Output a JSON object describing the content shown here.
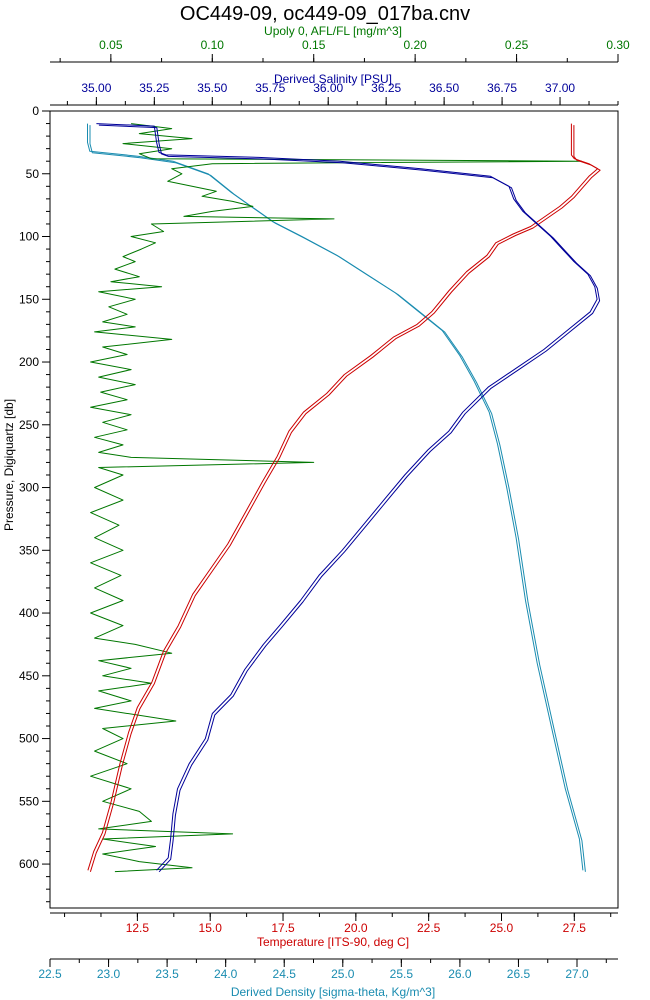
{
  "chart_data": {
    "type": "line",
    "title": "OC449-09, oc449-09_017ba.cnv",
    "axes": {
      "pressure": {
        "label": "Pressure, Digiquartz [db]",
        "range": [
          0,
          635
        ],
        "ticks": [
          "0",
          "50",
          "100",
          "150",
          "200",
          "250",
          "300",
          "350",
          "400",
          "450",
          "500",
          "550",
          "600"
        ],
        "color": "#000000"
      },
      "fluor": {
        "label": "Upoly 0, AFL/FL [mg/m^3]",
        "range": [
          0.02,
          0.3
        ],
        "ticks": [
          "0.05",
          "0.10",
          "0.15",
          "0.20",
          "0.25",
          "0.30"
        ],
        "color": "#007700"
      },
      "salinity": {
        "label": "Derived Salinity [PSU]",
        "range": [
          34.8,
          37.25
        ],
        "ticks": [
          "35.00",
          "35.25",
          "35.50",
          "35.75",
          "36.00",
          "36.25",
          "36.50",
          "36.75",
          "37.00"
        ],
        "color": "#000099"
      },
      "temperature": {
        "label": "Temperature [ITS-90, deg C]",
        "range": [
          9.5,
          29.0
        ],
        "ticks": [
          "12.5",
          "15.0",
          "17.5",
          "20.0",
          "22.5",
          "25.0",
          "27.5"
        ],
        "color": "#cc0000"
      },
      "density": {
        "label": "Derived Density [sigma-theta, Kg/m^3]",
        "range": [
          22.5,
          27.35
        ],
        "ticks": [
          "22.5",
          "23.0",
          "23.5",
          "24.0",
          "24.5",
          "25.0",
          "25.5",
          "26.0",
          "26.5",
          "27.0"
        ],
        "color": "#1a8cb0"
      }
    },
    "series": [
      {
        "key": "salinity",
        "color": "#000099",
        "points": [
          [
            35.0,
            10
          ],
          [
            35.25,
            12
          ],
          [
            35.26,
            25
          ],
          [
            35.27,
            33
          ],
          [
            35.3,
            35
          ],
          [
            35.7,
            37
          ],
          [
            36.05,
            40
          ],
          [
            36.4,
            46
          ],
          [
            36.7,
            52
          ],
          [
            36.78,
            60
          ],
          [
            36.8,
            70
          ],
          [
            36.84,
            80
          ],
          [
            36.9,
            90
          ],
          [
            36.96,
            100
          ],
          [
            37.01,
            110
          ],
          [
            37.06,
            120
          ],
          [
            37.12,
            130
          ],
          [
            37.15,
            140
          ],
          [
            37.16,
            150
          ],
          [
            37.13,
            160
          ],
          [
            37.03,
            175
          ],
          [
            36.93,
            190
          ],
          [
            36.81,
            205
          ],
          [
            36.69,
            220
          ],
          [
            36.58,
            240
          ],
          [
            36.52,
            255
          ],
          [
            36.43,
            270
          ],
          [
            36.33,
            290
          ],
          [
            36.24,
            310
          ],
          [
            36.15,
            330
          ],
          [
            36.06,
            350
          ],
          [
            35.96,
            370
          ],
          [
            35.88,
            390
          ],
          [
            35.79,
            410
          ],
          [
            35.72,
            425
          ],
          [
            35.64,
            445
          ],
          [
            35.58,
            465
          ],
          [
            35.5,
            480
          ],
          [
            35.47,
            500
          ],
          [
            35.4,
            520
          ],
          [
            35.35,
            540
          ],
          [
            35.33,
            560
          ],
          [
            35.32,
            580
          ],
          [
            35.31,
            595
          ],
          [
            35.26,
            605
          ]
        ]
      },
      {
        "key": "temperature",
        "color": "#cc0000",
        "points": [
          [
            27.4,
            10
          ],
          [
            27.4,
            20
          ],
          [
            27.4,
            35
          ],
          [
            27.5,
            38
          ],
          [
            28.0,
            42
          ],
          [
            28.3,
            46
          ],
          [
            28.0,
            52
          ],
          [
            27.7,
            60
          ],
          [
            27.4,
            68
          ],
          [
            27.0,
            76
          ],
          [
            26.5,
            84
          ],
          [
            26.0,
            92
          ],
          [
            25.4,
            98
          ],
          [
            24.8,
            105
          ],
          [
            24.5,
            115
          ],
          [
            23.8,
            128
          ],
          [
            23.2,
            143
          ],
          [
            22.6,
            160
          ],
          [
            22.1,
            170
          ],
          [
            21.3,
            180
          ],
          [
            20.5,
            195
          ],
          [
            19.6,
            210
          ],
          [
            19.0,
            225
          ],
          [
            18.2,
            240
          ],
          [
            17.7,
            255
          ],
          [
            17.3,
            275
          ],
          [
            16.8,
            295
          ],
          [
            16.2,
            320
          ],
          [
            15.6,
            345
          ],
          [
            15.0,
            365
          ],
          [
            14.4,
            385
          ],
          [
            13.9,
            410
          ],
          [
            13.4,
            430
          ],
          [
            13.0,
            455
          ],
          [
            12.5,
            475
          ],
          [
            12.2,
            495
          ],
          [
            11.9,
            520
          ],
          [
            11.6,
            550
          ],
          [
            11.3,
            575
          ],
          [
            11.0,
            590
          ],
          [
            10.8,
            605
          ]
        ]
      },
      {
        "key": "density",
        "color": "#1a8cb0",
        "points": [
          [
            22.82,
            10
          ],
          [
            22.82,
            25
          ],
          [
            22.84,
            32
          ],
          [
            23.25,
            36
          ],
          [
            23.55,
            40
          ],
          [
            23.85,
            50
          ],
          [
            24.05,
            65
          ],
          [
            24.2,
            75
          ],
          [
            24.4,
            88
          ],
          [
            24.65,
            100
          ],
          [
            24.95,
            115
          ],
          [
            25.2,
            130
          ],
          [
            25.45,
            145
          ],
          [
            25.65,
            160
          ],
          [
            25.85,
            175
          ],
          [
            26.0,
            195
          ],
          [
            26.12,
            215
          ],
          [
            26.25,
            240
          ],
          [
            26.32,
            265
          ],
          [
            26.4,
            300
          ],
          [
            26.48,
            340
          ],
          [
            26.56,
            390
          ],
          [
            26.66,
            440
          ],
          [
            26.78,
            490
          ],
          [
            26.9,
            540
          ],
          [
            27.02,
            580
          ],
          [
            27.05,
            605
          ]
        ]
      },
      {
        "key": "fluor",
        "color": "#007700",
        "points": [
          [
            0.06,
            10
          ],
          [
            0.08,
            14
          ],
          [
            0.064,
            18
          ],
          [
            0.09,
            22
          ],
          [
            0.056,
            26
          ],
          [
            0.08,
            30
          ],
          [
            0.064,
            34
          ],
          [
            0.07,
            38
          ],
          [
            0.282,
            40
          ],
          [
            0.1,
            42
          ],
          [
            0.08,
            46
          ],
          [
            0.085,
            50
          ],
          [
            0.078,
            56
          ],
          [
            0.09,
            60
          ],
          [
            0.102,
            64
          ],
          [
            0.095,
            68
          ],
          [
            0.11,
            72
          ],
          [
            0.12,
            76
          ],
          [
            0.1,
            80
          ],
          [
            0.086,
            84
          ],
          [
            0.16,
            86
          ],
          [
            0.07,
            90
          ],
          [
            0.076,
            96
          ],
          [
            0.06,
            100
          ],
          [
            0.072,
            105
          ],
          [
            0.065,
            110
          ],
          [
            0.056,
            116
          ],
          [
            0.062,
            120
          ],
          [
            0.052,
            126
          ],
          [
            0.064,
            132
          ],
          [
            0.05,
            136
          ],
          [
            0.075,
            140
          ],
          [
            0.044,
            144
          ],
          [
            0.062,
            150
          ],
          [
            0.049,
            156
          ],
          [
            0.058,
            162
          ],
          [
            0.046,
            168
          ],
          [
            0.062,
            172
          ],
          [
            0.042,
            176
          ],
          [
            0.08,
            182
          ],
          [
            0.046,
            188
          ],
          [
            0.058,
            194
          ],
          [
            0.04,
            200
          ],
          [
            0.06,
            206
          ],
          [
            0.044,
            212
          ],
          [
            0.062,
            218
          ],
          [
            0.045,
            224
          ],
          [
            0.058,
            230
          ],
          [
            0.04,
            236
          ],
          [
            0.06,
            242
          ],
          [
            0.046,
            248
          ],
          [
            0.058,
            254
          ],
          [
            0.042,
            260
          ],
          [
            0.056,
            266
          ],
          [
            0.044,
            272
          ],
          [
            0.06,
            276
          ],
          [
            0.15,
            280
          ],
          [
            0.044,
            284
          ],
          [
            0.056,
            290
          ],
          [
            0.042,
            300
          ],
          [
            0.056,
            310
          ],
          [
            0.04,
            320
          ],
          [
            0.054,
            330
          ],
          [
            0.042,
            340
          ],
          [
            0.056,
            350
          ],
          [
            0.04,
            360
          ],
          [
            0.055,
            370
          ],
          [
            0.042,
            380
          ],
          [
            0.056,
            390
          ],
          [
            0.04,
            400
          ],
          [
            0.056,
            410
          ],
          [
            0.042,
            420
          ],
          [
            0.062,
            425
          ],
          [
            0.08,
            432
          ],
          [
            0.044,
            438
          ],
          [
            0.06,
            444
          ],
          [
            0.046,
            450
          ],
          [
            0.07,
            456
          ],
          [
            0.044,
            462
          ],
          [
            0.06,
            470
          ],
          [
            0.042,
            476
          ],
          [
            0.082,
            486
          ],
          [
            0.046,
            492
          ],
          [
            0.056,
            500
          ],
          [
            0.042,
            510
          ],
          [
            0.058,
            520
          ],
          [
            0.04,
            530
          ],
          [
            0.06,
            540
          ],
          [
            0.046,
            550
          ],
          [
            0.064,
            558
          ],
          [
            0.07,
            566
          ],
          [
            0.044,
            572
          ],
          [
            0.11,
            576
          ],
          [
            0.046,
            580
          ],
          [
            0.072,
            586
          ],
          [
            0.046,
            592
          ],
          [
            0.064,
            598
          ],
          [
            0.09,
            603
          ],
          [
            0.052,
            606
          ]
        ]
      }
    ]
  }
}
